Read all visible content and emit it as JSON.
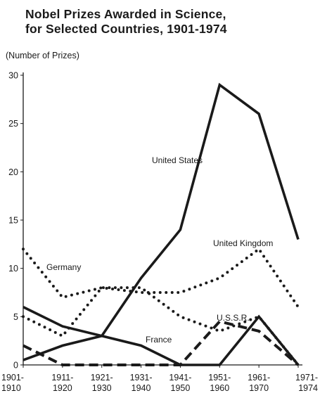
{
  "chart_data": {
    "type": "line",
    "title": [
      "Nobel Prizes Awarded in Science,",
      "for Selected Countries, 1901-1974"
    ],
    "ylabel": "(Number of Prizes)",
    "xlabel": "",
    "categories": [
      [
        "1901-",
        "1910"
      ],
      [
        "1911-",
        "1920"
      ],
      [
        "1921-",
        "1930"
      ],
      [
        "1931-",
        "1940"
      ],
      [
        "1941-",
        "1950"
      ],
      [
        "1951-",
        "1960"
      ],
      [
        "1961-",
        "1970"
      ],
      [
        "1971-",
        "1974"
      ]
    ],
    "ylim": [
      0,
      30
    ],
    "yticks": [
      0,
      5,
      10,
      15,
      20,
      25,
      30
    ],
    "grid": false,
    "legend": "inline labels",
    "series": [
      {
        "name": "United States",
        "style": "solid",
        "color": "#1a1a1a",
        "values": [
          0.5,
          2,
          3,
          9,
          14,
          29,
          26,
          13
        ]
      },
      {
        "name": "France",
        "style": "solid",
        "color": "#1a1a1a",
        "values": [
          6,
          4,
          3,
          2,
          0,
          0,
          5,
          0
        ]
      },
      {
        "name": "United Kingdom",
        "style": "dotted",
        "color": "#1a1a1a",
        "values": [
          12,
          7,
          8,
          7.5,
          7.5,
          9,
          12,
          6
        ]
      },
      {
        "name": "Germany",
        "style": "dotted",
        "color": "#1a1a1a",
        "values": [
          5,
          3,
          8,
          8,
          5,
          3.5,
          5,
          0
        ]
      },
      {
        "name": "U.S.S.R.",
        "style": "dashed",
        "color": "#1a1a1a",
        "values": [
          2,
          0,
          0,
          0,
          0,
          4.5,
          3.5,
          0
        ]
      }
    ]
  }
}
